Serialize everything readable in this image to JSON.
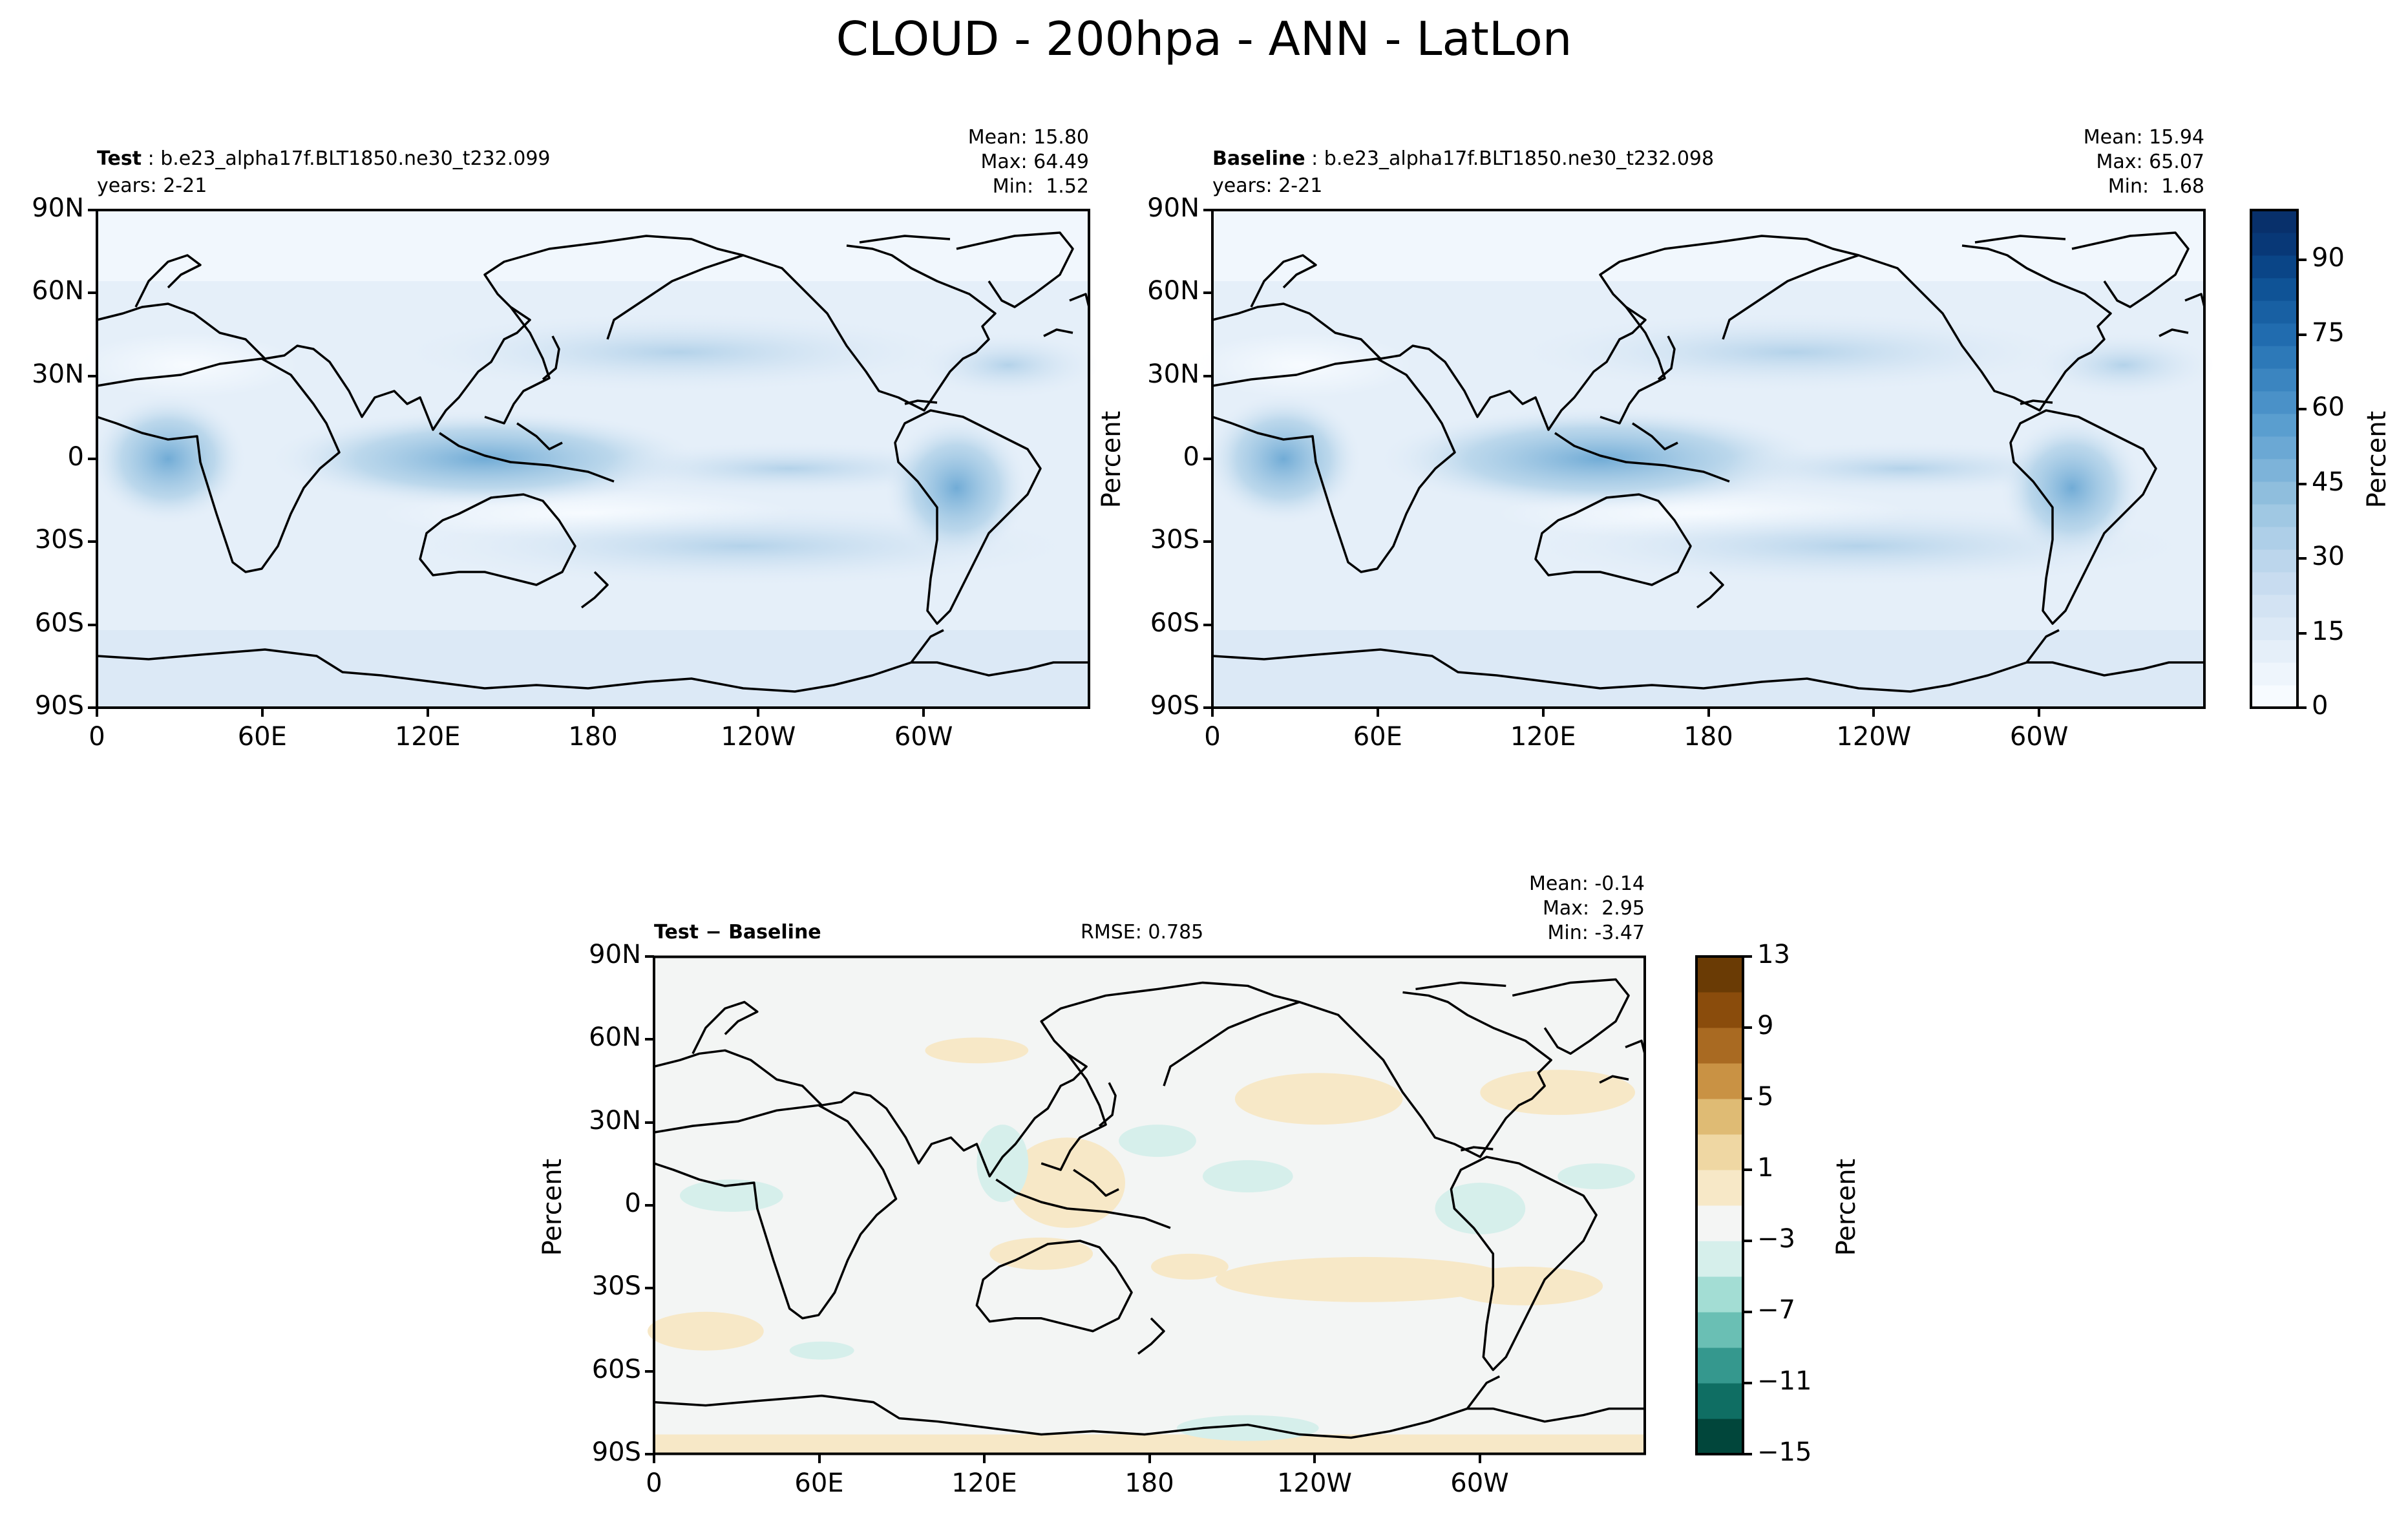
{
  "chart_data": [
    {
      "type": "heatmap",
      "id": "test",
      "title_prefix": "Test",
      "title_sep": " : ",
      "case": "b.e23_alpha17f.BLT1850.ne30_t232.099",
      "years": "years: 2-21",
      "stats": {
        "mean": "Mean: 15.80",
        "max": "Max: 64.49",
        "min": "Min:  1.52"
      },
      "x_ticks": [
        "0",
        "60E",
        "120E",
        "180",
        "120W",
        "60W"
      ],
      "y_ticks": [
        "90N",
        "60N",
        "30N",
        "0",
        "30S",
        "60S",
        "90S"
      ],
      "ylabel": "",
      "xlim": [
        0,
        360
      ],
      "ylim": [
        -90,
        90
      ]
    },
    {
      "type": "heatmap",
      "id": "baseline",
      "title_prefix": "Baseline",
      "title_sep": " : ",
      "case": "b.e23_alpha17f.BLT1850.ne30_t232.098",
      "years": "years: 2-21",
      "stats": {
        "mean": "Mean: 15.94",
        "max": "Max: 65.07",
        "min": "Min:  1.68"
      },
      "x_ticks": [
        "0",
        "60E",
        "120E",
        "180",
        "120W",
        "60W"
      ],
      "y_ticks": [
        "90N",
        "60N",
        "30N",
        "0",
        "30S",
        "60S",
        "90S"
      ],
      "ylabel": "Percent",
      "xlim": [
        0,
        360
      ],
      "ylim": [
        -90,
        90
      ]
    },
    {
      "type": "heatmap",
      "id": "diff",
      "title": "Test − Baseline",
      "title_a": "Test",
      "title_op": " − ",
      "title_b": "Baseline",
      "rmse": "RMSE: 0.785",
      "stats": {
        "mean": "Mean: -0.14",
        "max": "Max:  2.95",
        "min": "Min: -3.47"
      },
      "x_ticks": [
        "0",
        "60E",
        "120E",
        "180",
        "120W",
        "60W"
      ],
      "y_ticks": [
        "90N",
        "60N",
        "30N",
        "0",
        "30S",
        "60S",
        "90S"
      ],
      "ylabel": "Percent",
      "xlim": [
        0,
        360
      ],
      "ylim": [
        -90,
        90
      ]
    }
  ],
  "suptitle": "CLOUD - 200hpa - ANN - LatLon",
  "colorbars": {
    "main": {
      "label": "Percent",
      "ticks": [
        "0",
        "15",
        "30",
        "45",
        "60",
        "75",
        "90"
      ],
      "range": [
        0,
        100
      ],
      "colors": [
        "#f7fbff",
        "#eef5fc",
        "#e5eff9",
        "#dce9f6",
        "#d3e3f3",
        "#c8dcf0",
        "#bcd6ec",
        "#aecfe8",
        "#a0c8e3",
        "#8fbedd",
        "#7db3d9",
        "#6ba8d4",
        "#5a9ecf",
        "#4a91c8",
        "#3b85c0",
        "#2d79b8",
        "#216caf",
        "#1860a3",
        "#0f5396",
        "#0a4587",
        "#083877",
        "#08306b"
      ]
    },
    "diff": {
      "label": "Percent",
      "ticks": [
        "13",
        "9",
        "5",
        "1",
        "−3",
        "−7",
        "−11",
        "−15"
      ],
      "range": [
        -15,
        13
      ],
      "colors": [
        "#01463b",
        "#0f6e63",
        "#35988e",
        "#6abfb4",
        "#a3ddd4",
        "#d6efeb",
        "#f4f5f4",
        "#f7e8c7",
        "#efd7a3",
        "#dfbb74",
        "#c99244",
        "#a96a22",
        "#8a4c0c",
        "#6a3b05"
      ]
    }
  },
  "colors": {
    "ocean_light": "#eef5fc",
    "frame": "#000000"
  }
}
